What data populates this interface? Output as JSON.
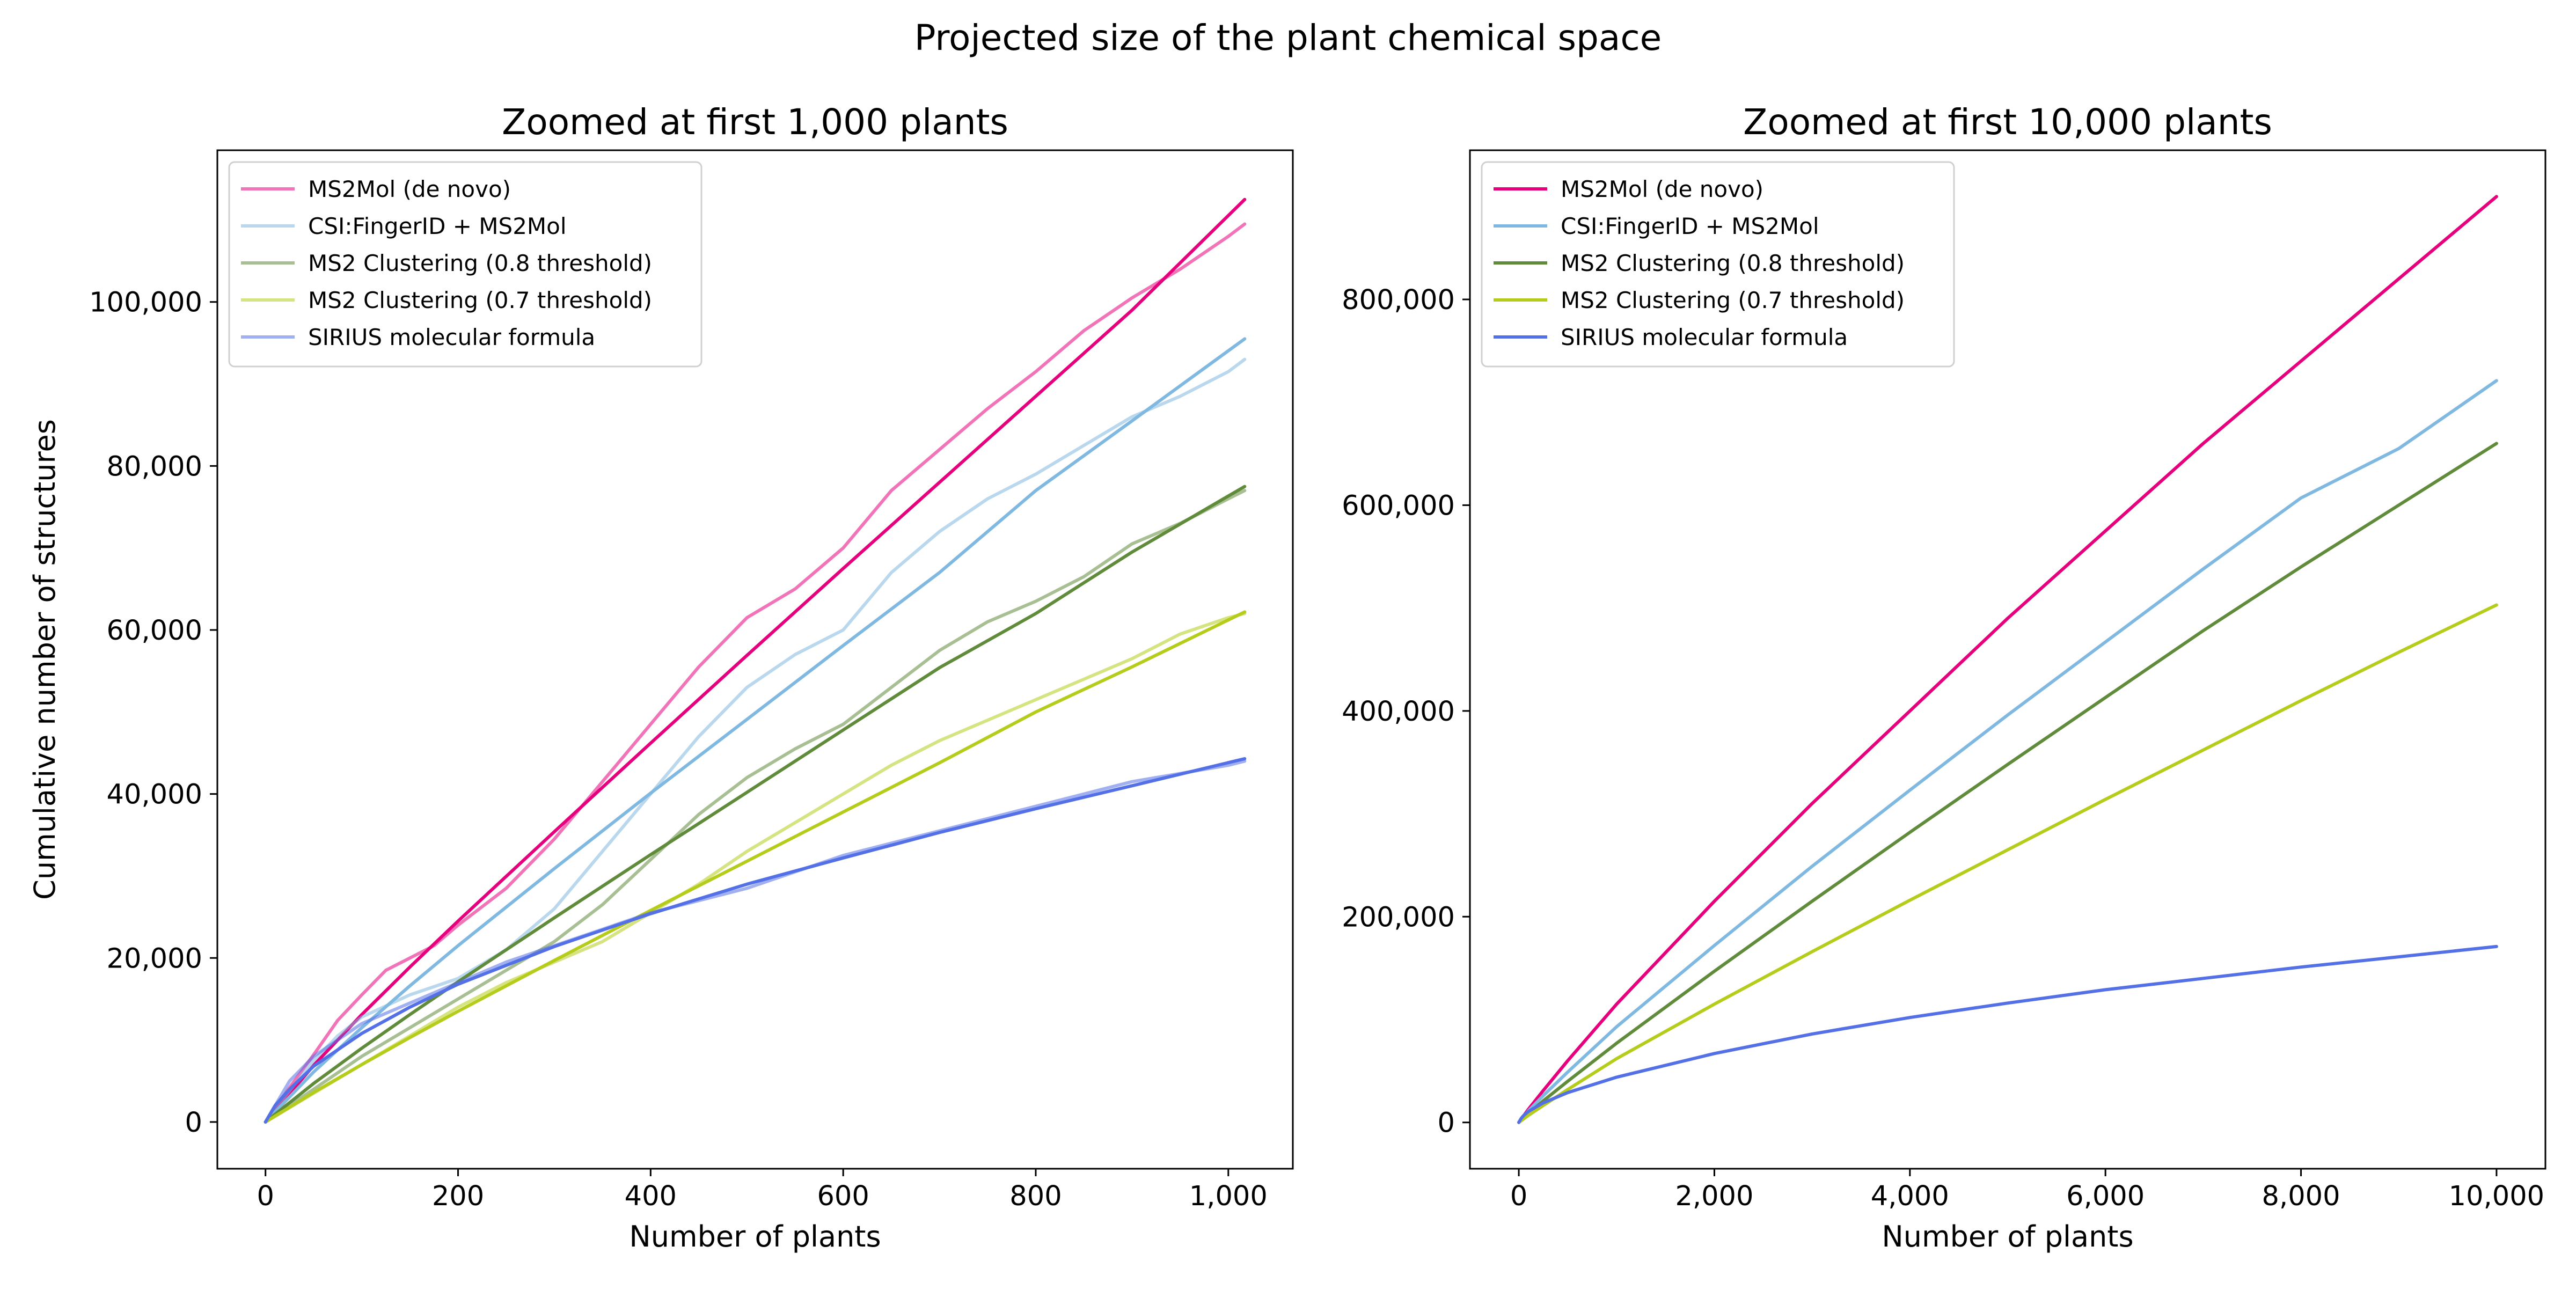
{
  "figure": {
    "suptitle": "Projected size of the plant chemical space"
  },
  "colors": {
    "ms2mol": "#e6007e",
    "csi": "#7fb8e0",
    "clust08": "#5f8b3a",
    "clust07": "#b5cc1a",
    "sirius": "#5470e6"
  },
  "chart_data": [
    {
      "type": "line",
      "title": "Zoomed at first 1,000 plants",
      "xlabel": "Number of plants",
      "ylabel": "Cumulative number of structures",
      "xlim": [
        -50,
        1067
      ],
      "ylim": [
        -5700,
        118500
      ],
      "x_ticks": [
        0,
        200,
        400,
        600,
        800,
        1000
      ],
      "x_tick_labels": [
        "0",
        "200",
        "400",
        "600",
        "800",
        "1,000"
      ],
      "y_ticks": [
        0,
        20000,
        40000,
        60000,
        80000,
        100000
      ],
      "y_tick_labels": [
        "0",
        "20,000",
        "40,000",
        "60,000",
        "80,000",
        "100,000"
      ],
      "grid": false,
      "legend_position": "top-left",
      "legend": [
        {
          "label": "MS2Mol (de novo)",
          "color_key": "ms2mol",
          "opacity": 0.55
        },
        {
          "label": "CSI:FingerID + MS2Mol",
          "color_key": "csi",
          "opacity": 0.55
        },
        {
          "label": "MS2 Clustering (0.8 threshold)",
          "color_key": "clust08",
          "opacity": 0.55
        },
        {
          "label": "MS2 Clustering (0.7 threshold)",
          "color_key": "clust07",
          "opacity": 0.55
        },
        {
          "label": "SIRIUS molecular formula",
          "color_key": "sirius",
          "opacity": 0.55
        }
      ],
      "series": [
        {
          "color_key": "ms2mol",
          "kind": "observed",
          "x": [
            0,
            25,
            50,
            75,
            100,
            125,
            150,
            175,
            200,
            250,
            300,
            350,
            400,
            450,
            500,
            550,
            600,
            650,
            700,
            750,
            800,
            850,
            900,
            950,
            1000,
            1017
          ],
          "y": [
            0,
            4200,
            8200,
            12400,
            15500,
            18500,
            20000,
            21500,
            24000,
            28500,
            34500,
            41500,
            48500,
            55500,
            61500,
            65000,
            70000,
            77000,
            82000,
            87000,
            91500,
            96500,
            100500,
            104000,
            108000,
            109500
          ]
        },
        {
          "color_key": "ms2mol",
          "kind": "fit",
          "x": [
            0,
            50,
            100,
            150,
            200,
            300,
            400,
            500,
            600,
            700,
            800,
            900,
            1017
          ],
          "y": [
            0,
            6900,
            13100,
            18900,
            24500,
            35400,
            46200,
            56900,
            67500,
            78000,
            88500,
            99000,
            112500
          ]
        },
        {
          "color_key": "csi",
          "kind": "observed",
          "x": [
            0,
            25,
            50,
            75,
            100,
            150,
            200,
            250,
            300,
            350,
            400,
            450,
            500,
            550,
            600,
            650,
            700,
            750,
            800,
            850,
            900,
            950,
            1000,
            1017
          ],
          "y": [
            0,
            3800,
            7500,
            10500,
            12800,
            15500,
            17500,
            21000,
            26000,
            33000,
            40000,
            47000,
            53000,
            57000,
            60000,
            67000,
            72000,
            76000,
            79000,
            82500,
            86000,
            88500,
            91500,
            93000
          ]
        },
        {
          "color_key": "csi",
          "kind": "fit",
          "x": [
            0,
            50,
            100,
            150,
            200,
            300,
            400,
            500,
            600,
            700,
            800,
            900,
            1017
          ],
          "y": [
            0,
            6100,
            11500,
            16600,
            21500,
            30900,
            40100,
            49100,
            58100,
            67000,
            77000,
            85500,
            95500
          ]
        },
        {
          "color_key": "clust08",
          "kind": "observed",
          "x": [
            0,
            50,
            100,
            150,
            200,
            250,
            300,
            350,
            400,
            450,
            500,
            550,
            600,
            650,
            700,
            750,
            800,
            850,
            900,
            950,
            1000,
            1017
          ],
          "y": [
            0,
            4000,
            8000,
            11500,
            15000,
            18500,
            22000,
            26500,
            32000,
            37500,
            42000,
            45500,
            48500,
            53000,
            57500,
            61000,
            63500,
            66500,
            70500,
            73000,
            76000,
            77000
          ]
        },
        {
          "color_key": "clust08",
          "kind": "fit",
          "x": [
            0,
            50,
            100,
            150,
            200,
            300,
            400,
            500,
            600,
            700,
            800,
            900,
            1017
          ],
          "y": [
            0,
            4700,
            9000,
            13100,
            17100,
            24900,
            32600,
            40200,
            47800,
            55400,
            62000,
            69500,
            77500
          ]
        },
        {
          "color_key": "clust07",
          "kind": "observed",
          "x": [
            0,
            50,
            100,
            150,
            200,
            250,
            300,
            350,
            400,
            450,
            500,
            550,
            600,
            650,
            700,
            750,
            800,
            850,
            900,
            950,
            1000,
            1017
          ],
          "y": [
            0,
            3500,
            7000,
            10500,
            14000,
            17000,
            19500,
            22000,
            25500,
            29000,
            33000,
            36500,
            40000,
            43500,
            46500,
            49000,
            51500,
            54000,
            56500,
            59500,
            61500,
            62000
          ]
        },
        {
          "color_key": "clust07",
          "kind": "fit",
          "x": [
            0,
            50,
            100,
            150,
            200,
            300,
            400,
            500,
            600,
            700,
            800,
            900,
            1017
          ],
          "y": [
            0,
            3600,
            7000,
            10300,
            13500,
            19700,
            25800,
            31800,
            37800,
            43800,
            50000,
            55500,
            62200
          ]
        },
        {
          "color_key": "sirius",
          "kind": "observed",
          "x": [
            0,
            25,
            50,
            75,
            100,
            150,
            200,
            250,
            300,
            350,
            400,
            450,
            500,
            550,
            600,
            650,
            700,
            750,
            800,
            850,
            900,
            950,
            1000,
            1017
          ],
          "y": [
            0,
            5000,
            8000,
            10000,
            12000,
            14500,
            17000,
            19500,
            21500,
            23500,
            25500,
            27000,
            28500,
            30500,
            32500,
            34000,
            35500,
            37000,
            38500,
            40000,
            41500,
            42500,
            43500,
            44000
          ]
        },
        {
          "color_key": "sirius",
          "kind": "fit",
          "x": [
            0,
            10,
            25,
            50,
            100,
            150,
            200,
            300,
            400,
            500,
            600,
            700,
            800,
            900,
            1017
          ],
          "y": [
            0,
            2000,
            4000,
            6800,
            10800,
            14000,
            16800,
            21400,
            25400,
            29000,
            32200,
            35300,
            38200,
            41000,
            44300
          ]
        }
      ]
    },
    {
      "type": "line",
      "title": "Zoomed at first 10,000 plants",
      "xlabel": "Number of plants",
      "ylabel": "",
      "xlim": [
        -500,
        10500
      ],
      "ylim": [
        -45000,
        945000
      ],
      "x_ticks": [
        0,
        2000,
        4000,
        6000,
        8000,
        10000
      ],
      "x_tick_labels": [
        "0",
        "2,000",
        "4,000",
        "6,000",
        "8,000",
        "10,000"
      ],
      "y_ticks": [
        0,
        200000,
        400000,
        600000,
        800000
      ],
      "y_tick_labels": [
        "0",
        "200,000",
        "400,000",
        "600,000",
        "800,000"
      ],
      "grid": false,
      "legend_position": "top-left",
      "legend": [
        {
          "label": "MS2Mol (de novo)",
          "color_key": "ms2mol",
          "opacity": 1
        },
        {
          "label": "CSI:FingerID + MS2Mol",
          "color_key": "csi",
          "opacity": 1
        },
        {
          "label": "MS2 Clustering (0.8 threshold)",
          "color_key": "clust08",
          "opacity": 1
        },
        {
          "label": "MS2 Clustering (0.7 threshold)",
          "color_key": "clust07",
          "opacity": 1
        },
        {
          "label": "SIRIUS molecular formula",
          "color_key": "sirius",
          "opacity": 1
        }
      ],
      "series": [
        {
          "color_key": "ms2mol",
          "kind": "fit",
          "x": [
            0,
            100,
            250,
            500,
            1000,
            2000,
            3000,
            4000,
            5000,
            6000,
            7000,
            8000,
            9000,
            10000
          ],
          "y": [
            0,
            13000,
            31000,
            60000,
            115000,
            215000,
            310000,
            400000,
            490000,
            575000,
            660000,
            740000,
            820000,
            900000
          ]
        },
        {
          "color_key": "csi",
          "kind": "fit",
          "x": [
            0,
            100,
            250,
            500,
            1000,
            2000,
            3000,
            4000,
            5000,
            6000,
            7000,
            8000,
            9000,
            10000
          ],
          "y": [
            0,
            11500,
            26000,
            49000,
            93000,
            172000,
            249000,
            323000,
            396000,
            467000,
            538000,
            607000,
            655000,
            721000
          ]
        },
        {
          "color_key": "clust08",
          "kind": "fit",
          "x": [
            0,
            100,
            250,
            500,
            1000,
            2000,
            3000,
            4000,
            5000,
            6000,
            7000,
            8000,
            9000,
            10000
          ],
          "y": [
            0,
            9000,
            21000,
            40000,
            77000,
            147000,
            215000,
            282000,
            348000,
            413000,
            478000,
            540000,
            600000,
            660000
          ]
        },
        {
          "color_key": "clust07",
          "kind": "fit",
          "x": [
            0,
            100,
            250,
            500,
            1000,
            2000,
            3000,
            4000,
            5000,
            6000,
            7000,
            8000,
            9000,
            10000
          ],
          "y": [
            0,
            7000,
            16500,
            32000,
            62000,
            115000,
            166000,
            216000,
            265000,
            314000,
            362000,
            410000,
            457000,
            503000
          ]
        },
        {
          "color_key": "sirius",
          "kind": "fit",
          "x": [
            0,
            25,
            50,
            100,
            250,
            500,
            1000,
            2000,
            3000,
            4000,
            5000,
            6000,
            7000,
            8000,
            9000,
            10000
          ],
          "y": [
            0,
            4000,
            6800,
            10800,
            19000,
            29000,
            44000,
            67000,
            86000,
            102000,
            116000,
            129000,
            140000,
            151000,
            161000,
            171000
          ]
        }
      ]
    }
  ]
}
